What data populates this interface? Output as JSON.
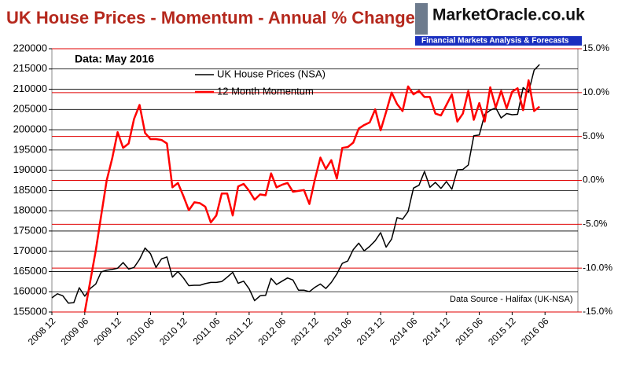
{
  "chart_data": {
    "type": "line",
    "title": "UK House Prices - Momentum - Annual % Change",
    "brand": "MarketOracle.co.uk",
    "tagline": "Financial Markets Analysis & Forecasts",
    "annotations": [
      "Data:  May 2016",
      "Data Source - Halifax (UK-NSA)"
    ],
    "categories": [
      "2008 12",
      null,
      null,
      null,
      null,
      null,
      "2009 06",
      null,
      null,
      null,
      null,
      null,
      "2009 12",
      null,
      null,
      null,
      null,
      null,
      "2010 06",
      null,
      null,
      null,
      null,
      null,
      "2010 12",
      null,
      null,
      null,
      null,
      null,
      "2011 06",
      null,
      null,
      null,
      null,
      null,
      "2011 12",
      null,
      null,
      null,
      null,
      null,
      "2012 06",
      null,
      null,
      null,
      null,
      null,
      "2012 12",
      null,
      null,
      null,
      null,
      null,
      "2013 06",
      null,
      null,
      null,
      null,
      null,
      "2013 12",
      null,
      null,
      null,
      null,
      null,
      "2014 06",
      null,
      null,
      null,
      null,
      null,
      "2014 12",
      null,
      null,
      null,
      null,
      null,
      "2015 06",
      null,
      null,
      null,
      null,
      null,
      "2015 12",
      null,
      null,
      null,
      null,
      null,
      "2016 06",
      null,
      null,
      null,
      null,
      null,
      null
    ],
    "series": [
      {
        "name": "UK House Prices (NSA)",
        "color": "#000000",
        "axis": "y",
        "values": [
          158500,
          159500,
          159000,
          157200,
          157300,
          161000,
          158900,
          160800,
          161900,
          164900,
          165300,
          165500,
          165800,
          167200,
          165600,
          166000,
          168000,
          170800,
          169400,
          166000,
          168100,
          168600,
          163600,
          165000,
          163400,
          161500,
          161600,
          161600,
          162000,
          162300,
          162300,
          162500,
          163600,
          164800,
          162100,
          162600,
          160700,
          157800,
          159000,
          159100,
          163300,
          161800,
          162600,
          163400,
          162900,
          160400,
          160400,
          160000,
          161100,
          161900,
          160800,
          162300,
          164400,
          167000,
          167600,
          170400,
          172000,
          170100,
          171200,
          172600,
          174600,
          171000,
          173000,
          178300,
          177900,
          179800,
          185600,
          186300,
          189700,
          185800,
          187000,
          185500,
          187200,
          185300,
          190100,
          190200,
          191300,
          198500,
          198700,
          203800,
          204800,
          205400,
          202900,
          204000,
          203700,
          203800,
          210400,
          209300,
          214700,
          216100,
          null,
          null,
          null,
          null,
          null,
          null,
          null
        ]
      },
      {
        "name": "12 Month Momentum",
        "color": "#ff0000",
        "axis": "y2",
        "values": [
          null,
          null,
          null,
          null,
          null,
          null,
          -15,
          -11.5,
          -8,
          -4,
          0,
          2.5,
          5.5,
          3.7,
          4.2,
          7,
          8.6,
          5.4,
          4.7,
          4.7,
          4.6,
          4.2,
          -0.8,
          -0.3,
          -1.8,
          -3.4,
          -2.5,
          -2.6,
          -3,
          -4.8,
          -4,
          -1.5,
          -1.5,
          -4,
          -0.7,
          -0.4,
          -1.2,
          -2.2,
          -1.6,
          -1.7,
          0.8,
          -0.8,
          -0.5,
          -0.3,
          -1.3,
          -1.2,
          -1.1,
          -2.7,
          0.1,
          2.6,
          1.3,
          2.3,
          0.2,
          3.7,
          3.8,
          4.3,
          5.9,
          6.3,
          6.6,
          8.1,
          5.7,
          7.8,
          10,
          8.7,
          7.9,
          10.7,
          9.8,
          10.2,
          9.5,
          9.5,
          7.6,
          7.4,
          8.6,
          9.8,
          6.7,
          7.6,
          10.2,
          6.9,
          8.8,
          6.7,
          10.6,
          8.3,
          10.2,
          8.2,
          10.1,
          10.5,
          8,
          11.4,
          7.9,
          8.4,
          null,
          null,
          null,
          null,
          null,
          null,
          null
        ]
      }
    ],
    "ylim": [
      155000,
      220000
    ],
    "yticks": [
      155000,
      160000,
      165000,
      170000,
      175000,
      180000,
      185000,
      190000,
      195000,
      200000,
      205000,
      210000,
      215000,
      220000
    ],
    "y2lim": [
      -15,
      15
    ],
    "y2ticks": [
      {
        "value": -15,
        "label": "-15.0%"
      },
      {
        "value": -10,
        "label": "-10.0%"
      },
      {
        "value": -5,
        "label": "-5.0%"
      },
      {
        "value": 0,
        "label": "0.0%"
      },
      {
        "value": 5,
        "label": "5.0%"
      },
      {
        "value": 10,
        "label": "10.0%"
      },
      {
        "value": 15,
        "label": "15.0%"
      }
    ],
    "grid": true,
    "title_color": "#b5281d"
  }
}
